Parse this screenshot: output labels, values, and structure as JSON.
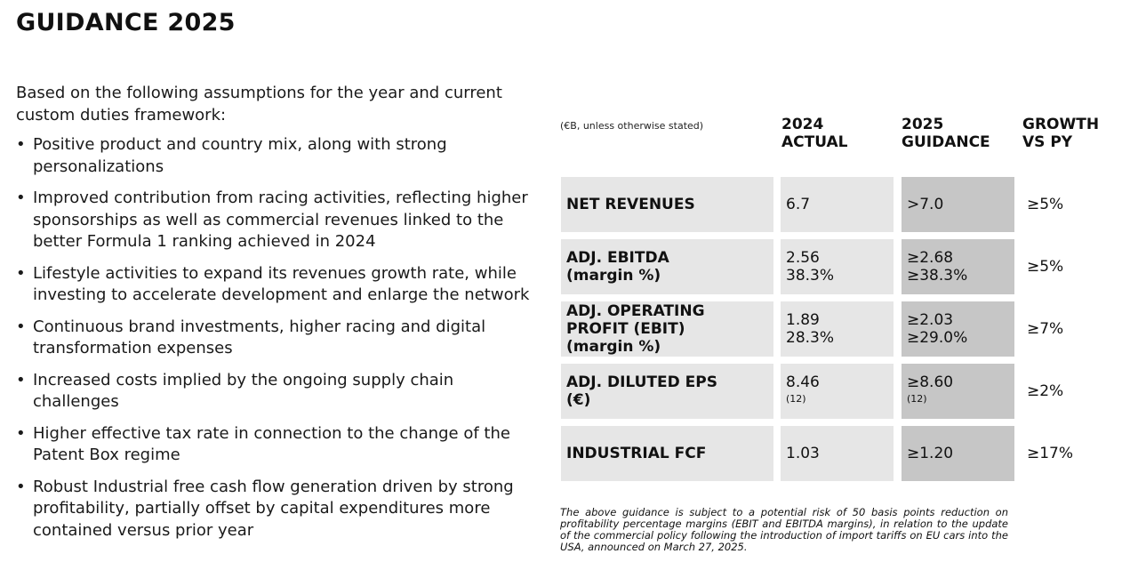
{
  "title": "GUIDANCE 2025",
  "intro": "Based on the following assumptions for the year and current custom duties framework:",
  "bullets": [
    "Positive product and country mix, along with strong personalizations",
    "Improved contribution from racing activities, reflecting higher sponsorships as well as commercial revenues linked to the better Formula 1 ranking achieved in 2024",
    "Lifestyle activities to expand its revenues growth rate, while investing to accelerate development and enlarge the network",
    "Continuous brand investments, higher racing and digital transformation expenses",
    "Increased costs implied by the ongoing supply chain challenges",
    "Higher effective tax rate in connection to the change of the Patent Box regime",
    "Robust Industrial free cash flow generation driven by strong profitability, partially offset by capital expenditures more contained versus prior year"
  ],
  "table": {
    "unit_note": "(€B, unless otherwise stated)",
    "headers": {
      "actual": [
        "2024",
        "ACTUAL"
      ],
      "guidance": [
        "2025",
        "GUIDANCE"
      ],
      "growth": [
        "GROWTH",
        "VS PY"
      ]
    },
    "rows": [
      {
        "label": [
          "NET REVENUES"
        ],
        "actual": [
          "6.7"
        ],
        "guidance": [
          ">7.0"
        ],
        "growth": "≥5%"
      },
      {
        "label": [
          "ADJ. EBITDA",
          "(margin %)"
        ],
        "actual": [
          "2.56",
          "38.3%"
        ],
        "guidance": [
          "≥2.68",
          "≥38.3%"
        ],
        "growth": "≥5%"
      },
      {
        "label": [
          "ADJ. OPERATING",
          "PROFIT (EBIT)",
          "(margin %)"
        ],
        "actual": [
          "1.89",
          "28.3%"
        ],
        "guidance": [
          "≥2.03",
          "≥29.0%"
        ],
        "growth": "≥7%"
      },
      {
        "label": [
          "ADJ. DILUTED EPS",
          "(€)"
        ],
        "actual": [
          "8.46"
        ],
        "actual_note": "(12)",
        "guidance": [
          "≥8.60"
        ],
        "guidance_note": "(12)",
        "growth": "≥2%"
      },
      {
        "label": [
          "INDUSTRIAL FCF"
        ],
        "actual": [
          "1.03"
        ],
        "guidance": [
          "≥1.20"
        ],
        "growth": "≥17%"
      }
    ]
  },
  "footnote": "The above guidance is subject to a potential risk of 50 basis points reduction on profitability percentage margins (EBIT and EBITDA margins), in relation to the update of the commercial policy following the introduction of import tariffs on EU cars into the USA, announced on March 27, 2025.",
  "colors": {
    "label_bg": "#e6e6e6",
    "guidance_bg": "#c6c6c6",
    "text": "#111111"
  }
}
